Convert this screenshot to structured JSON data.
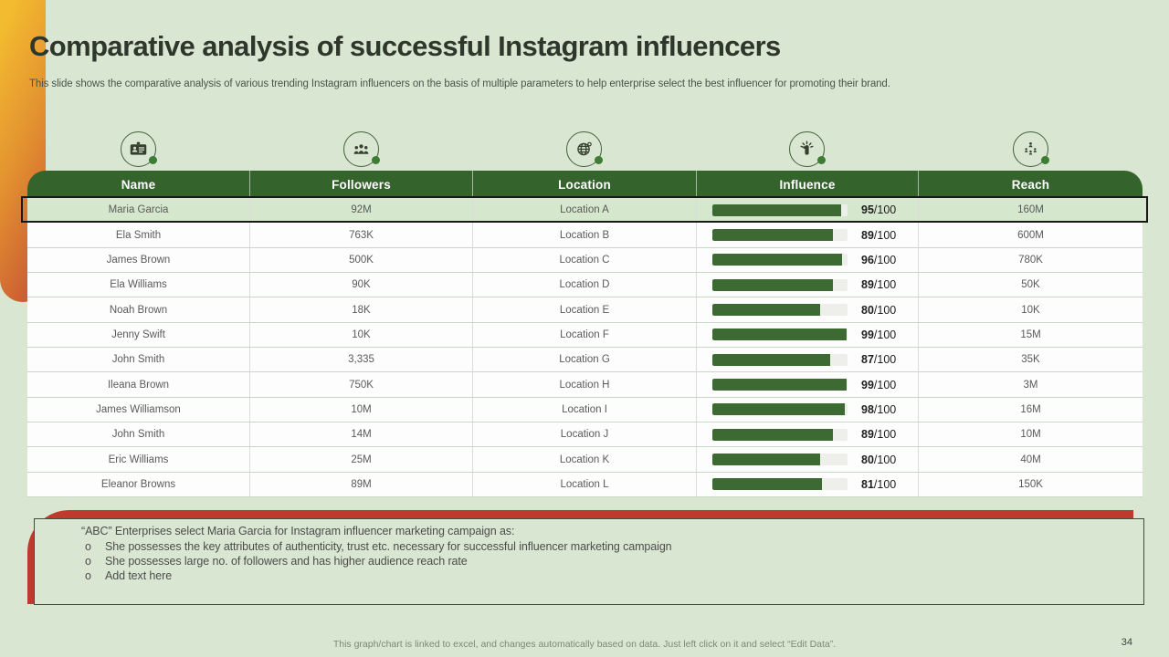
{
  "slide": {
    "title": "Comparative analysis of successful Instagram influencers",
    "subtitle": "This slide shows the comparative analysis of various trending Instagram influencers on the basis of multiple parameters to help enterprise select the best influencer for promoting their brand.",
    "footer_note": "This graph/chart is linked to excel, and changes automatically based on data. Just left click on it and select “Edit Data”.",
    "page_number": "34"
  },
  "table": {
    "influence_max": 100,
    "influence_suffix": "/100",
    "columns": [
      {
        "key": "name",
        "label": "Name",
        "icon": "id-card-icon"
      },
      {
        "key": "followers",
        "label": "Followers",
        "icon": "people-group-icon"
      },
      {
        "key": "location",
        "label": "Location",
        "icon": "globe-icon"
      },
      {
        "key": "influence",
        "label": "Influence",
        "icon": "influencer-icon"
      },
      {
        "key": "reach",
        "label": "Reach",
        "icon": "network-icon"
      }
    ],
    "rows": [
      {
        "name": "Maria Garcia",
        "followers": "92M",
        "location": "Location A",
        "influence": 95,
        "reach": "160M",
        "highlighted": true
      },
      {
        "name": "Ela Smith",
        "followers": "763K",
        "location": "Location B",
        "influence": 89,
        "reach": "600M",
        "highlighted": false
      },
      {
        "name": "James Brown",
        "followers": "500K",
        "location": "Location C",
        "influence": 96,
        "reach": "780K",
        "highlighted": false
      },
      {
        "name": "Ela Williams",
        "followers": "90K",
        "location": "Location D",
        "influence": 89,
        "reach": "50K",
        "highlighted": false
      },
      {
        "name": "Noah Brown",
        "followers": "18K",
        "location": "Location E",
        "influence": 80,
        "reach": "10K",
        "highlighted": false
      },
      {
        "name": "Jenny Swift",
        "followers": "10K",
        "location": "Location F",
        "influence": 99,
        "reach": "15M",
        "highlighted": false
      },
      {
        "name": "John Smith",
        "followers": "3,335",
        "location": "Location G",
        "influence": 87,
        "reach": "35K",
        "highlighted": false
      },
      {
        "name": "Ileana Brown",
        "followers": "750K",
        "location": "Location H",
        "influence": 99,
        "reach": "3M",
        "highlighted": false
      },
      {
        "name": "James Williamson",
        "followers": "10M",
        "location": "Location I",
        "influence": 98,
        "reach": "16M",
        "highlighted": false
      },
      {
        "name": "John Smith",
        "followers": "14M",
        "location": "Location J",
        "influence": 89,
        "reach": "10M",
        "highlighted": false
      },
      {
        "name": "Eric Williams",
        "followers": "25M",
        "location": "Location K",
        "influence": 80,
        "reach": "40M",
        "highlighted": false
      },
      {
        "name": "Eleanor Browns",
        "followers": "89M",
        "location": "Location L",
        "influence": 81,
        "reach": "150K",
        "highlighted": false
      }
    ]
  },
  "callout": {
    "intro": "“ABC” Enterprises select Maria Garcia for Instagram influencer marketing campaign as:",
    "bullet_marker": "o",
    "bullets": [
      "She possesses the key attributes of authenticity, trust etc. necessary for successful influencer marketing campaign",
      "She possesses large no. of followers and has higher audience reach rate",
      "Add text here"
    ]
  },
  "colors": {
    "background": "#d9e7d2",
    "header_green": "#35632c",
    "bar_green": "#3c6a32",
    "highlight_row": "#d5e7cc",
    "orange_gradient_start": "#f3bb2f",
    "orange_gradient_end": "#cc5e33",
    "red_accent": "#bf3a2d",
    "body_text": "#5a5a5a"
  }
}
